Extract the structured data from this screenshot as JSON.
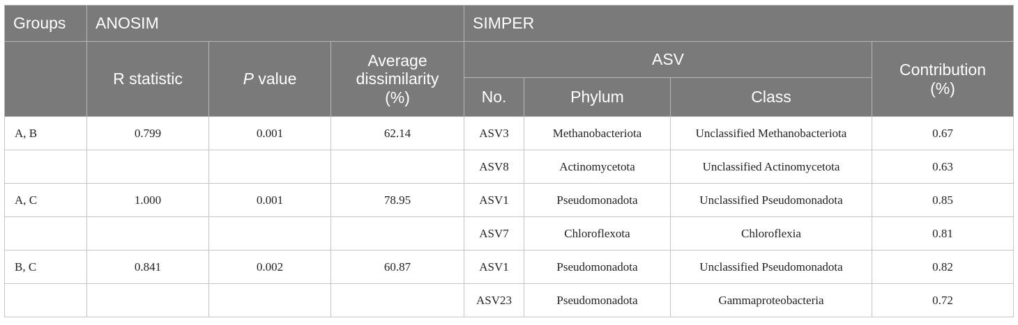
{
  "header": {
    "groups": "Groups",
    "anosim": "ANOSIM",
    "simper": "SIMPER",
    "r_statistic": "R statistic",
    "p_value_italic": "P",
    "p_value_rest": " value",
    "avg_line1": "Average",
    "avg_line2": "dissimilarity",
    "avg_line3": "(%)",
    "asv": "ASV",
    "contribution_line1": "Contribution",
    "contribution_line2": "(%)",
    "no": "No.",
    "phylum": "Phylum",
    "class": "Class"
  },
  "rows": [
    {
      "groups": "A, B",
      "r": "0.799",
      "p": "0.001",
      "avg": "62.14",
      "no": "ASV3",
      "phylum": "Methanobacteriota",
      "class": "Unclassified Methanobacteriota",
      "contribution": "0.67"
    },
    {
      "groups": "",
      "r": "",
      "p": "",
      "avg": "",
      "no": "ASV8",
      "phylum": "Actinomycetota",
      "class": "Unclassified Actinomycetota",
      "contribution": "0.63"
    },
    {
      "groups": "A, C",
      "r": "1.000",
      "p": "0.001",
      "avg": "78.95",
      "no": "ASV1",
      "phylum": "Pseudomonadota",
      "class": "Unclassified Pseudomonadota",
      "contribution": "0.85"
    },
    {
      "groups": "",
      "r": "",
      "p": "",
      "avg": "",
      "no": "ASV7",
      "phylum": "Chloroflexota",
      "class": "Chloroflexia",
      "contribution": "0.81"
    },
    {
      "groups": "B, C",
      "r": "0.841",
      "p": "0.002",
      "avg": "60.87",
      "no": "ASV1",
      "phylum": "Pseudomonadota",
      "class": "Unclassified Pseudomonadota",
      "contribution": "0.82"
    },
    {
      "groups": "",
      "r": "",
      "p": "",
      "avg": "",
      "no": "ASV23",
      "phylum": "Pseudomonadota",
      "class": "Gammaproteobacteria",
      "contribution": "0.72"
    }
  ]
}
